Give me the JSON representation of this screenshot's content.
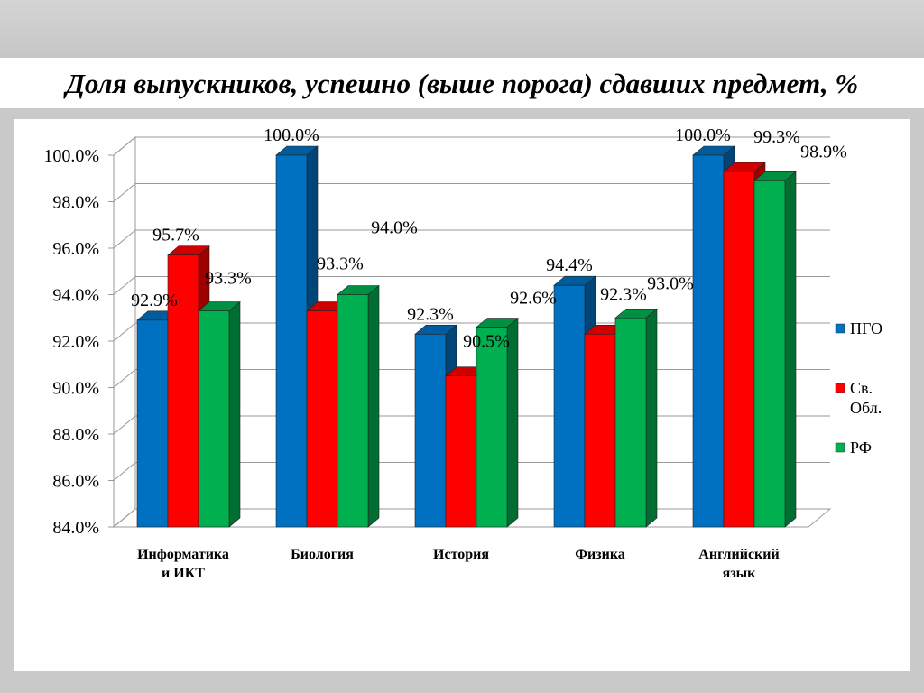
{
  "slide": {
    "title": "Доля выпускников, успешно (выше порога) сдавших предмет, %"
  },
  "chart_data": {
    "type": "bar",
    "categories": [
      "Информатика и ИКТ",
      "Биология",
      "История",
      "Физика",
      "Английский язык"
    ],
    "category_lines": [
      [
        "Информатика",
        "и ИКТ"
      ],
      [
        "Биология"
      ],
      [
        "История"
      ],
      [
        "Физика"
      ],
      [
        "Английский",
        "язык"
      ]
    ],
    "series": [
      {
        "name": "ПГО",
        "legend_lines": [
          "ПГО"
        ],
        "color": "#0070c0",
        "values": [
          92.9,
          100.0,
          92.3,
          94.4,
          100.0
        ],
        "labels": [
          "92.9%",
          "100.0%",
          "92.3%",
          "94.4%",
          "100.0%"
        ]
      },
      {
        "name": "Св. Обл.",
        "legend_lines": [
          "Св.",
          "Обл."
        ],
        "color": "#ff0000",
        "values": [
          95.7,
          93.3,
          90.5,
          92.3,
          99.3
        ],
        "labels": [
          "95.7%",
          "93.3%",
          "90.5%",
          "92.3%",
          "99.3%"
        ]
      },
      {
        "name": "РФ",
        "legend_lines": [
          "РФ"
        ],
        "color": "#00b050",
        "values": [
          93.3,
          94.0,
          92.6,
          93.0,
          98.9
        ],
        "labels": [
          "93.3%",
          "94.0%",
          "92.6%",
          "93.0%",
          "98.9%"
        ]
      }
    ],
    "ylim": [
      84.0,
      100.0
    ],
    "yticks": [
      "84.0%",
      "86.0%",
      "88.0%",
      "90.0%",
      "92.0%",
      "94.0%",
      "96.0%",
      "98.0%",
      "100.0%"
    ],
    "grid": true,
    "legend": "right",
    "three_d": true
  }
}
